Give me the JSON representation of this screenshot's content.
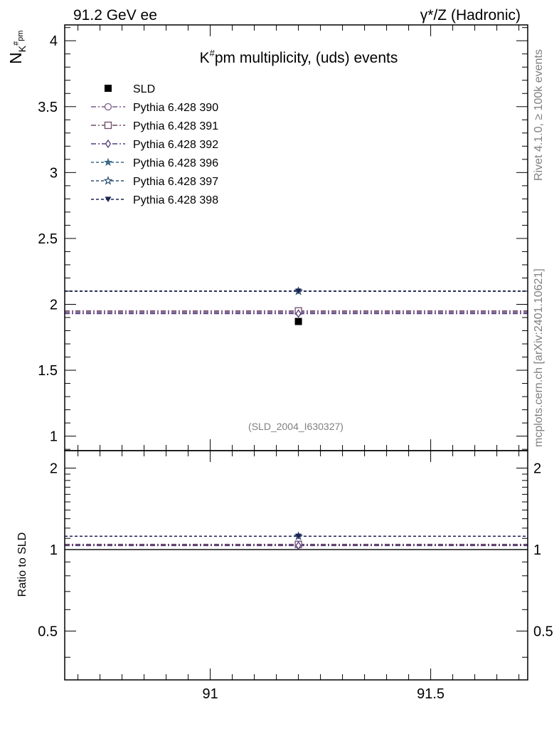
{
  "header": {
    "left": "91.2 GeV ee",
    "right": "γ*/Z (Hadronic)"
  },
  "side_labels": {
    "rivet": "Rivet 4.1.0, ≥ 100k events",
    "mcplots": "mcplots.cern.ch [arXiv:2401.10621]"
  },
  "colors": {
    "sld": "#000000",
    "p390": "#7a5a8c",
    "p391": "#6e4a6a",
    "p392": "#523c7e",
    "p396": "#3f6a88",
    "p397": "#2e4f74",
    "p398": "#1b2350"
  },
  "chart_data": [
    {
      "type": "scatter",
      "panel": "main",
      "title": "K#pm multiplicity, (uds) events",
      "ylabel": "N_K#pm",
      "reference": "(SLD_2004_I630327)",
      "xlim": [
        90.67,
        91.72
      ],
      "ylim": [
        0.89,
        4.12
      ],
      "yticks": [
        1,
        1.5,
        2,
        2.5,
        3,
        3.5,
        4
      ],
      "ytick_labels": [
        "1",
        "1.5",
        "2",
        "2.5",
        "3",
        "3.5",
        "4"
      ],
      "xticks": [
        91,
        91.5
      ],
      "series": [
        {
          "name": "SLD",
          "key": "sld",
          "marker": "filled-square",
          "line": "none",
          "x": 91.2,
          "y": 1.87
        },
        {
          "name": "Pythia 6.428 390",
          "key": "p390",
          "marker": "open-circle",
          "line": "dashdot",
          "x": 91.2,
          "y": 1.94
        },
        {
          "name": "Pythia 6.428 391",
          "key": "p391",
          "marker": "open-square",
          "line": "dashdot",
          "x": 91.2,
          "y": 1.95
        },
        {
          "name": "Pythia 6.428 392",
          "key": "p392",
          "marker": "open-diamond",
          "line": "dashdot",
          "x": 91.2,
          "y": 1.93
        },
        {
          "name": "Pythia 6.428 396",
          "key": "p396",
          "marker": "filled-star",
          "line": "dashed",
          "x": 91.2,
          "y": 2.1
        },
        {
          "name": "Pythia 6.428 397",
          "key": "p397",
          "marker": "open-star",
          "line": "dashed",
          "x": 91.2,
          "y": 2.1
        },
        {
          "name": "Pythia 6.428 398",
          "key": "p398",
          "marker": "filled-triangle-down",
          "line": "dashed",
          "x": 91.2,
          "y": 2.1
        }
      ]
    },
    {
      "type": "scatter",
      "panel": "ratio",
      "ylabel": "Ratio to SLD",
      "xlim": [
        90.67,
        91.72
      ],
      "ylim": [
        0.33,
        2.32
      ],
      "yticks": [
        0.5,
        1,
        2
      ],
      "ytick_labels": [
        "0.5",
        "1",
        "2"
      ],
      "xticks": [
        91,
        91.5
      ],
      "xtick_labels": [
        "91",
        "91.5"
      ],
      "reference_line": 1.0,
      "series": [
        {
          "name": "Pythia 6.428 390",
          "key": "p390",
          "x": 91.2,
          "y": 1.04
        },
        {
          "name": "Pythia 6.428 391",
          "key": "p391",
          "x": 91.2,
          "y": 1.045
        },
        {
          "name": "Pythia 6.428 392",
          "key": "p392",
          "x": 91.2,
          "y": 1.035
        },
        {
          "name": "Pythia 6.428 396",
          "key": "p396",
          "x": 91.2,
          "y": 1.12
        },
        {
          "name": "Pythia 6.428 397",
          "key": "p397",
          "x": 91.2,
          "y": 1.12
        },
        {
          "name": "Pythia 6.428 398",
          "key": "p398",
          "x": 91.2,
          "y": 1.12
        }
      ]
    }
  ]
}
